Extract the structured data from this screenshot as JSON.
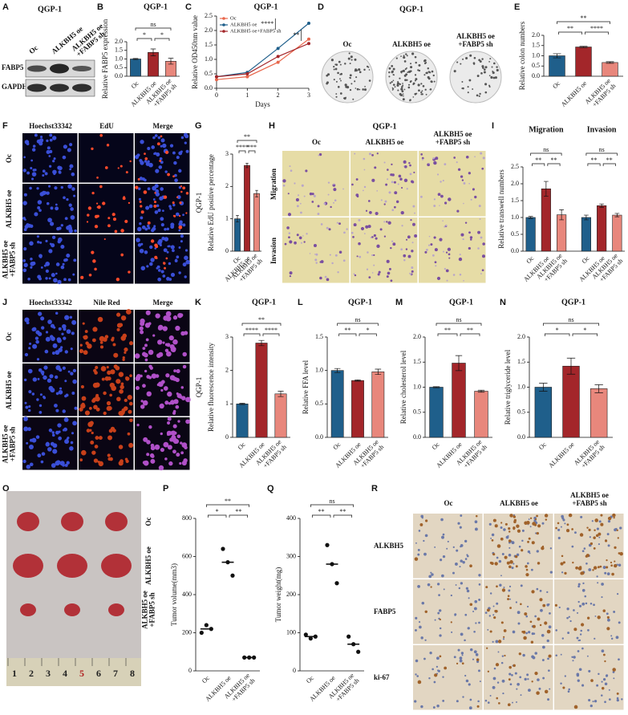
{
  "chart_data": [
    {
      "letter": "B",
      "type": "bar",
      "title": "QGP-1",
      "y_label": "Relative FABP5 expression",
      "categories": [
        [
          "Oc"
        ],
        [
          "ALKBH5 oe"
        ],
        [
          "ALKBH5 oe",
          "+FABP5 sh"
        ]
      ],
      "values": [
        1.0,
        1.38,
        0.87
      ],
      "errors": [
        0.03,
        0.2,
        0.17
      ],
      "colors": [
        "#1f5f8b",
        "#a3262a",
        "#e8877c"
      ],
      "ylim": [
        0,
        2
      ],
      "yticks": [
        {
          "value": 0,
          "label": "0.0"
        },
        0.5,
        {
          "value": 1,
          "label": "1.0"
        },
        1.5,
        {
          "value": 2,
          "label": "2.0"
        }
      ],
      "significance": [
        {
          "pair": [
            0,
            1
          ],
          "label": "*"
        },
        {
          "pair": [
            1,
            2
          ],
          "label": "*"
        },
        {
          "pair": [
            0,
            2
          ],
          "label": "ns"
        }
      ]
    },
    {
      "letter": "C",
      "type": "line",
      "title": "QGP-1",
      "y_label": "Relative OD450nm value",
      "x_label": "Days",
      "x": [
        0,
        1,
        2,
        3
      ],
      "xlim": [
        0,
        3
      ],
      "xticks": [
        0,
        1,
        2,
        3
      ],
      "series": [
        {
          "name": "Oc",
          "color": "#e8674c",
          "values": [
            0.3,
            0.4,
            0.9,
            1.7
          ]
        },
        {
          "name": "ALKBH5 oe",
          "color": "#1f5f8b",
          "values": [
            0.4,
            0.55,
            1.38,
            2.25
          ]
        },
        {
          "name": "ALKBH5 oe+FABP5 sh",
          "color": "#a3262a",
          "values": [
            0.4,
            0.5,
            1.1,
            1.55
          ]
        }
      ],
      "ylim": [
        0,
        2.5
      ],
      "yticks": [
        {
          "value": 0,
          "label": "0.0"
        },
        0.5,
        {
          "value": 1,
          "label": "1.0"
        },
        1.5,
        {
          "value": 2,
          "label": "2.0"
        },
        2.5
      ],
      "annotations": [
        "****",
        "**"
      ]
    },
    {
      "letter": "E",
      "type": "bar",
      "y_label": "Relative colon numbers",
      "categories": [
        [
          "Oc"
        ],
        [
          "ALKBH5 oe"
        ],
        [
          "ALKBH5 oe",
          "+FABP5 sh"
        ]
      ],
      "values": [
        1.0,
        1.43,
        0.67
      ],
      "errors": [
        0.1,
        0.03,
        0.04
      ],
      "colors": [
        "#1f5f8b",
        "#a3262a",
        "#e8877c"
      ],
      "ylim": [
        0,
        2
      ],
      "yticks": [
        {
          "value": 0,
          "label": "0.0"
        },
        0.5,
        {
          "value": 1,
          "label": "1.0"
        },
        1.5,
        {
          "value": 2,
          "label": "2.0"
        }
      ],
      "significance": [
        {
          "pair": [
            0,
            1
          ],
          "label": "**"
        },
        {
          "pair": [
            1,
            2
          ],
          "label": "****"
        },
        {
          "pair": [
            0,
            2
          ],
          "label": "**"
        }
      ]
    },
    {
      "letter": "G",
      "type": "bar",
      "side_label": "QGP-1",
      "y_label": "Relative EdU positive percentage",
      "categories": [
        [
          "Oc"
        ],
        [
          "ALKBH5 oe"
        ],
        [
          "ALKBH5 oe",
          "+FABP5 sh"
        ]
      ],
      "values": [
        1.0,
        2.65,
        1.78
      ],
      "errors": [
        0.1,
        0.07,
        0.1
      ],
      "colors": [
        "#1f5f8b",
        "#a3262a",
        "#e8877c"
      ],
      "ylim": [
        0,
        3
      ],
      "yticks": [
        0,
        1,
        2,
        3
      ],
      "significance": [
        {
          "pair": [
            0,
            1
          ],
          "label": "****"
        },
        {
          "pair": [
            1,
            2
          ],
          "label": "***"
        },
        {
          "pair": [
            0,
            2
          ],
          "label": "**"
        }
      ]
    },
    {
      "letter": "I",
      "type": "grouped_bar",
      "y_label": "Relative transwell numbers",
      "categories": [
        [
          "Oc"
        ],
        [
          "ALKBH5 oe"
        ],
        [
          "ALKBH5 oe",
          "+FABP5 sh"
        ]
      ],
      "colors": [
        "#1f5f8b",
        "#a3262a",
        "#e8877c"
      ],
      "groups": [
        {
          "name": "Migration",
          "values": [
            1.0,
            1.85,
            1.08
          ],
          "errors": [
            0.03,
            0.22,
            0.15
          ],
          "significance": [
            {
              "pair": [
                0,
                1
              ],
              "label": "**"
            },
            {
              "pair": [
                1,
                2
              ],
              "label": "**"
            },
            {
              "pair": [
                0,
                2
              ],
              "label": "ns"
            }
          ]
        },
        {
          "name": "Invasion",
          "values": [
            1.0,
            1.35,
            1.07
          ],
          "errors": [
            0.07,
            0.05,
            0.05
          ],
          "significance": [
            {
              "pair": [
                0,
                1
              ],
              "label": "**"
            },
            {
              "pair": [
                1,
                2
              ],
              "label": "**"
            },
            {
              "pair": [
                0,
                2
              ],
              "label": "ns"
            }
          ]
        }
      ],
      "ylim": [
        0,
        2.5
      ],
      "yticks": [
        {
          "value": 0,
          "label": "0.0"
        },
        0.5,
        {
          "value": 1,
          "label": "1.0"
        },
        1.5,
        {
          "value": 2,
          "label": "2.0"
        },
        2.5
      ]
    },
    {
      "letter": "K",
      "type": "bar",
      "title": "QGP-1",
      "side_label": "QGP-1",
      "y_label": "Relative fluorescence intensity",
      "categories": [
        [
          "Oc"
        ],
        [
          "ALKBH5 oe"
        ],
        [
          "ALKBH5 oe",
          "+FABP5 sh"
        ]
      ],
      "values": [
        1.0,
        2.82,
        1.3
      ],
      "errors": [
        0.02,
        0.08,
        0.08
      ],
      "colors": [
        "#1f5f8b",
        "#a3262a",
        "#e8877c"
      ],
      "ylim": [
        0,
        3
      ],
      "yticks": [
        0,
        1,
        2,
        3
      ],
      "significance": [
        {
          "pair": [
            0,
            1
          ],
          "label": "****"
        },
        {
          "pair": [
            1,
            2
          ],
          "label": "****"
        },
        {
          "pair": [
            0,
            2
          ],
          "label": "**"
        }
      ]
    },
    {
      "letter": "L",
      "type": "bar",
      "title": "QGP-1",
      "y_label": "Relative FFA level",
      "categories": [
        [
          "Oc"
        ],
        [
          "ALKBH5 oe"
        ],
        [
          "ALKBH5 oe",
          "+FABP5 sh"
        ]
      ],
      "values": [
        1.0,
        0.85,
        0.98
      ],
      "errors": [
        0.03,
        0.01,
        0.04
      ],
      "colors": [
        "#1f5f8b",
        "#a3262a",
        "#e8877c"
      ],
      "ylim": [
        0,
        1.5
      ],
      "yticks": [
        {
          "value": 0,
          "label": "0.0"
        },
        0.5,
        {
          "value": 1,
          "label": "1.0"
        },
        1.5
      ],
      "significance": [
        {
          "pair": [
            0,
            1
          ],
          "label": "**"
        },
        {
          "pair": [
            1,
            2
          ],
          "label": "*"
        },
        {
          "pair": [
            0,
            2
          ],
          "label": "ns"
        }
      ]
    },
    {
      "letter": "M",
      "type": "bar",
      "title": "QGP-1",
      "y_label": "Relative cholesterol level",
      "categories": [
        [
          "Oc"
        ],
        [
          "ALKBH5 oe"
        ],
        [
          "ALKBH5 oe",
          "+FABP5 sh"
        ]
      ],
      "values": [
        1.0,
        1.48,
        0.92
      ],
      "errors": [
        0.01,
        0.15,
        0.02
      ],
      "colors": [
        "#1f5f8b",
        "#a3262a",
        "#e8877c"
      ],
      "ylim": [
        0,
        2
      ],
      "yticks": [
        {
          "value": 0,
          "label": "0.0"
        },
        0.5,
        {
          "value": 1,
          "label": "1.0"
        },
        1.5,
        {
          "value": 2,
          "label": "2.0"
        }
      ],
      "significance": [
        {
          "pair": [
            0,
            1
          ],
          "label": "**"
        },
        {
          "pair": [
            1,
            2
          ],
          "label": "**"
        },
        {
          "pair": [
            0,
            2
          ],
          "label": "ns"
        }
      ]
    },
    {
      "letter": "N",
      "type": "bar",
      "title": "QGP-1",
      "y_label": "Relative triglyceride level",
      "categories": [
        [
          "Oc"
        ],
        [
          "ALKBH5 oe"
        ],
        [
          "ALKBH5 oe",
          "+FABP5 sh"
        ]
      ],
      "values": [
        1.0,
        1.42,
        0.97
      ],
      "errors": [
        0.08,
        0.16,
        0.08
      ],
      "colors": [
        "#1f5f8b",
        "#a3262a",
        "#e8877c"
      ],
      "ylim": [
        0,
        2
      ],
      "yticks": [
        {
          "value": 0,
          "label": "0.0"
        },
        0.5,
        {
          "value": 1,
          "label": "1.0"
        },
        1.5,
        {
          "value": 2,
          "label": "2.0"
        }
      ],
      "significance": [
        {
          "pair": [
            0,
            1
          ],
          "label": "*"
        },
        {
          "pair": [
            1,
            2
          ],
          "label": "*"
        },
        {
          "pair": [
            0,
            2
          ],
          "label": "ns"
        }
      ]
    },
    {
      "letter": "P",
      "type": "dot",
      "y_label": "Tumor volume(mm3)",
      "categories": [
        [
          "Oc"
        ],
        [
          "ALKBH5 oe"
        ],
        [
          "ALKBH5 oe",
          "+FABP5 sh"
        ]
      ],
      "points": [
        [
          200,
          240,
          220
        ],
        [
          640,
          570,
          500
        ],
        [
          70,
          70,
          70
        ]
      ],
      "means": [
        220,
        570,
        70
      ],
      "ylim": [
        0,
        800
      ],
      "yticks": [
        0,
        200,
        400,
        600,
        800
      ],
      "significance": [
        {
          "pair": [
            0,
            1
          ],
          "label": "*"
        },
        {
          "pair": [
            1,
            2
          ],
          "label": "**"
        },
        {
          "pair": [
            0,
            2
          ],
          "label": "**"
        }
      ]
    },
    {
      "letter": "Q",
      "type": "dot",
      "y_label": "Tumor weight(mg)",
      "categories": [
        [
          "Oc"
        ],
        [
          "ALKBH5 oe"
        ],
        [
          "ALKBH5 oe",
          "+FABP5 sh"
        ]
      ],
      "points": [
        [
          95,
          85,
          90
        ],
        [
          330,
          280,
          230
        ],
        [
          90,
          70,
          50
        ]
      ],
      "means": [
        90,
        280,
        70
      ],
      "ylim": [
        0,
        400
      ],
      "yticks": [
        0,
        100,
        200,
        300,
        400
      ],
      "significance": [
        {
          "pair": [
            0,
            1
          ],
          "label": "**"
        },
        {
          "pair": [
            1,
            2
          ],
          "label": "**"
        },
        {
          "pair": [
            0,
            2
          ],
          "label": "ns"
        }
      ]
    }
  ],
  "images": [
    {
      "letter": "A",
      "title": "QGP-1",
      "columns": [
        [
          "Oc"
        ],
        [
          "ALKBH5 oe"
        ],
        [
          "ALKBH5 oe",
          "+FABP5 sh"
        ]
      ],
      "rows": [
        [
          "FABP5"
        ],
        [
          "GAPDH"
        ]
      ]
    },
    {
      "letter": "D",
      "title": "QGP-1",
      "columns": [
        [
          "Oc"
        ],
        [
          "ALKBH5 oe"
        ],
        [
          "ALKBH5 oe",
          "+FABP5 sh"
        ]
      ]
    },
    {
      "letter": "F",
      "columns": [
        [
          "Hoechst33342"
        ],
        [
          "EdU"
        ],
        [
          "Merge"
        ]
      ],
      "rows": [
        [
          "Oc"
        ],
        [
          "ALKBH5 oe"
        ],
        [
          "ALKBH5 oe",
          "+FABP5 sh"
        ]
      ]
    },
    {
      "letter": "H",
      "title": "QGP-1",
      "columns": [
        [
          "Oc"
        ],
        [
          "ALKBH5 oe"
        ],
        [
          "ALKBH5 oe",
          "+FABP5 sh"
        ]
      ],
      "rows": [
        [
          "Migration"
        ],
        [
          "Invasion"
        ]
      ]
    },
    {
      "letter": "J",
      "columns": [
        [
          "Hoechst33342"
        ],
        [
          "Nile Red"
        ],
        [
          "Merge"
        ]
      ],
      "rows": [
        [
          "Oc"
        ],
        [
          "ALKBH5 oe"
        ],
        [
          "ALKBH5 oe",
          "+FABP5 sh"
        ]
      ]
    },
    {
      "letter": "O",
      "rows": [
        [
          "Oc"
        ],
        [
          "ALKBH5 oe"
        ],
        [
          "ALKBH5 oe",
          "+FABP5 sh"
        ]
      ],
      "ruler": [
        1,
        2,
        3,
        4,
        5,
        6,
        7,
        8
      ]
    },
    {
      "letter": "R",
      "columns": [
        [
          "Oc"
        ],
        [
          "ALKBH5 oe"
        ],
        [
          "ALKBH5 oe",
          "+FABP5 sh"
        ]
      ],
      "rows": [
        [
          "ALKBH5"
        ],
        [
          "FABP5"
        ],
        [
          "ki-67"
        ]
      ]
    }
  ]
}
